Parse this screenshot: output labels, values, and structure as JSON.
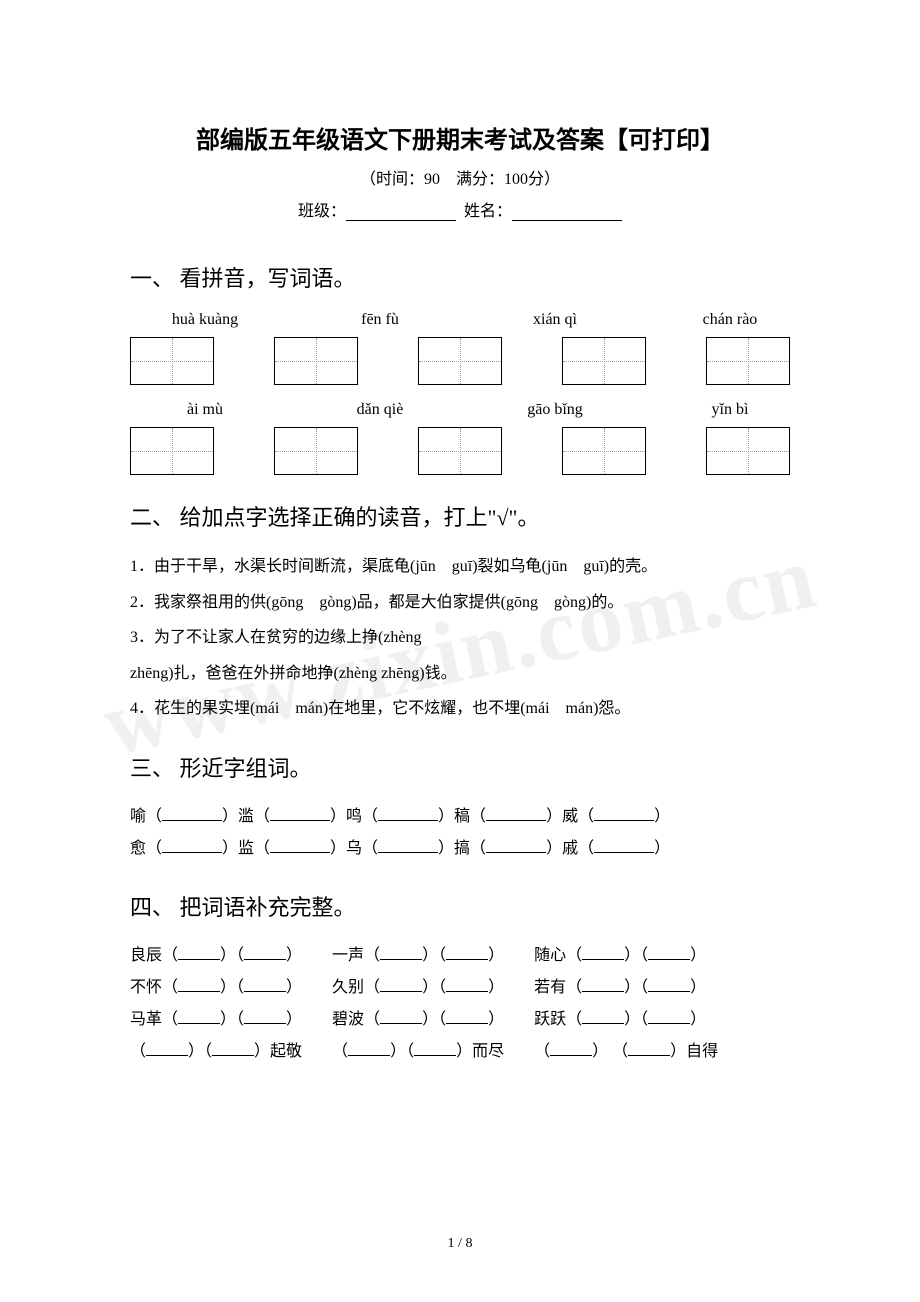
{
  "watermark": "www.zixin.com.cn",
  "title": "部编版五年级语文下册期末考试及答案【可打印】",
  "subtitle": "（时间：90　满分：100分）",
  "info": {
    "class_label": "班级：",
    "name_label": "姓名："
  },
  "section1": {
    "heading": "一、 看拼音，写词语。",
    "row1": [
      "huà kuàng",
      "fēn fù",
      "xián qì",
      "chán rào"
    ],
    "row2": [
      "ài mù",
      "dǎn qiè",
      "gāo bǐng",
      "yǐn bì"
    ]
  },
  "section2": {
    "heading": "二、 给加点字选择正确的读音，打上\"√\"。",
    "q1": "1．由于干旱，水渠长时间断流，渠底龟(jūn　guī)裂如乌龟(jūn　guī)的壳。",
    "q2": "2．我家祭祖用的供(gōng　gòng)品，都是大伯家提供(gōng　gòng)的。",
    "q3a": "3．为了不让家人在贫穷的边缘上挣(zhèng",
    "q3b": "zhēng)扎，爸爸在外拼命地挣(zhèng zhēng)钱。",
    "q4": "4．花生的果实埋(mái　mán)在地里，它不炫耀，也不埋(mái　mán)怨。"
  },
  "section3": {
    "heading": "三、 形近字组词。",
    "line1": {
      "c1": "喻（",
      "c2": "）滥（",
      "c3": "）鸣（",
      "c4": "）稿（",
      "c5": "）威（",
      "c6": "）"
    },
    "line2": {
      "c1": "愈（",
      "c2": "）监（",
      "c3": "）乌（",
      "c4": "）搞（",
      "c5": "）戚（",
      "c6": "）"
    }
  },
  "section4": {
    "heading": "四、 把词语补充完整。",
    "rows": [
      [
        "良辰（",
        "）（",
        "）",
        "一声（",
        "）（",
        "）",
        "随心（",
        "）（",
        "）"
      ],
      [
        "不怀（",
        "）（",
        "）",
        "久别（",
        "）（",
        "）",
        "若有（",
        "）（",
        "）"
      ],
      [
        "马革（",
        "）（",
        "）",
        "碧波（",
        "）（",
        "）",
        "跃跃（",
        "）（",
        "）"
      ],
      [
        "（",
        "）（",
        "）起敬",
        "（",
        "）（",
        "）而尽",
        "（",
        "）  （",
        "）自得"
      ]
    ]
  },
  "pagenum": "1 / 8"
}
